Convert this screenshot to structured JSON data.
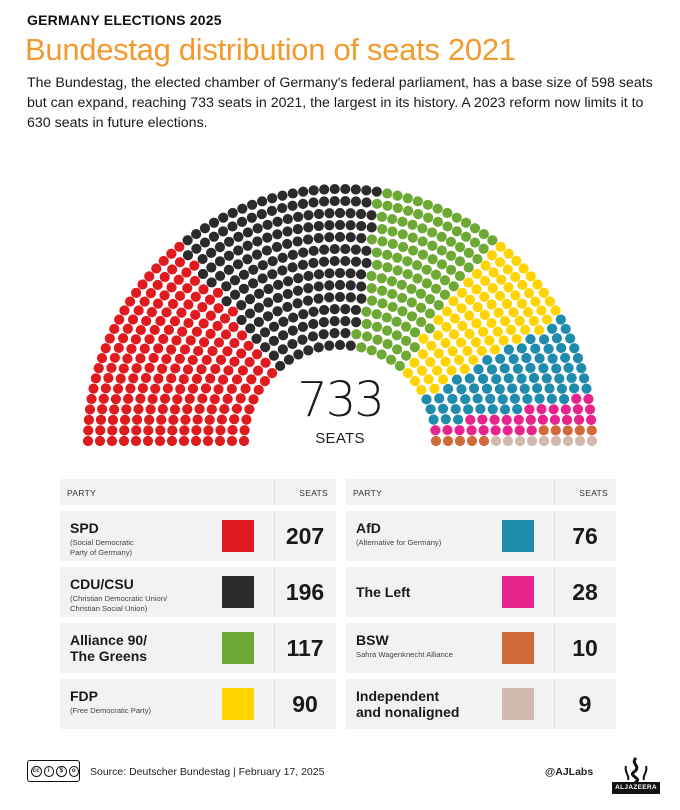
{
  "header": {
    "kicker": "GERMANY ELECTIONS 2025",
    "title": "Bundestag distribution of seats 2021",
    "subtitle": "The Bundestag, the elected chamber of Germany's federal parliament, has a base size of 598 seats but can expand, reaching 733 seats in 2021, the largest in its history. A 2023 reform now limits it to 630 seats in future elections."
  },
  "total": {
    "value": "733",
    "label": "SEATS"
  },
  "table": {
    "col_party": "PARTY",
    "col_seats": "SEATS",
    "left_rows": [
      {
        "name": "SPD",
        "full": "(Social Democratic\nParty of Germany)",
        "seats": "207",
        "color": "#e01b1f"
      },
      {
        "name": "CDU/CSU",
        "full": "(Christian Democratic Union/\nChristian Social Union)",
        "seats": "196",
        "color": "#2b2b2b"
      },
      {
        "name": "Alliance 90/\nThe Greens",
        "full": "",
        "seats": "117",
        "color": "#6fa935"
      },
      {
        "name": "FDP",
        "full": "(Free Democratic Party)",
        "seats": "90",
        "color": "#ffd400"
      }
    ],
    "right_rows": [
      {
        "name": "AfD",
        "full": "(Alternative for Germany)",
        "seats": "76",
        "color": "#1f8cae"
      },
      {
        "name": "The Left",
        "full": "",
        "seats": "28",
        "color": "#e8238c"
      },
      {
        "name": "BSW",
        "full": "Sahra Wagenknecht Alliance",
        "seats": "10",
        "color": "#d2693a"
      },
      {
        "name": "Independent\nand nonaligned",
        "full": "",
        "seats": "9",
        "color": "#d2b8ad"
      }
    ]
  },
  "footer": {
    "license": "CC BY NC SA",
    "source": "Source: Deutscher Bundestag  |  February 17, 2025",
    "handle": "@AJLabs",
    "logo_text": "ALJAZEERA"
  },
  "chart_data": {
    "type": "parliament",
    "total": 733,
    "series": [
      {
        "name": "SPD",
        "value": 207,
        "color": "#e01b1f"
      },
      {
        "name": "CDU/CSU",
        "value": 196,
        "color": "#2b2b2b"
      },
      {
        "name": "Alliance 90/The Greens",
        "value": 117,
        "color": "#6fa935"
      },
      {
        "name": "FDP",
        "value": 90,
        "color": "#ffd400"
      },
      {
        "name": "AfD",
        "value": 76,
        "color": "#1f8cae"
      },
      {
        "name": "The Left",
        "value": 28,
        "color": "#e8238c"
      },
      {
        "name": "BSW",
        "value": 10,
        "color": "#d2693a"
      },
      {
        "name": "Independent and nonaligned",
        "value": 9,
        "color": "#d2b8ad"
      }
    ]
  }
}
